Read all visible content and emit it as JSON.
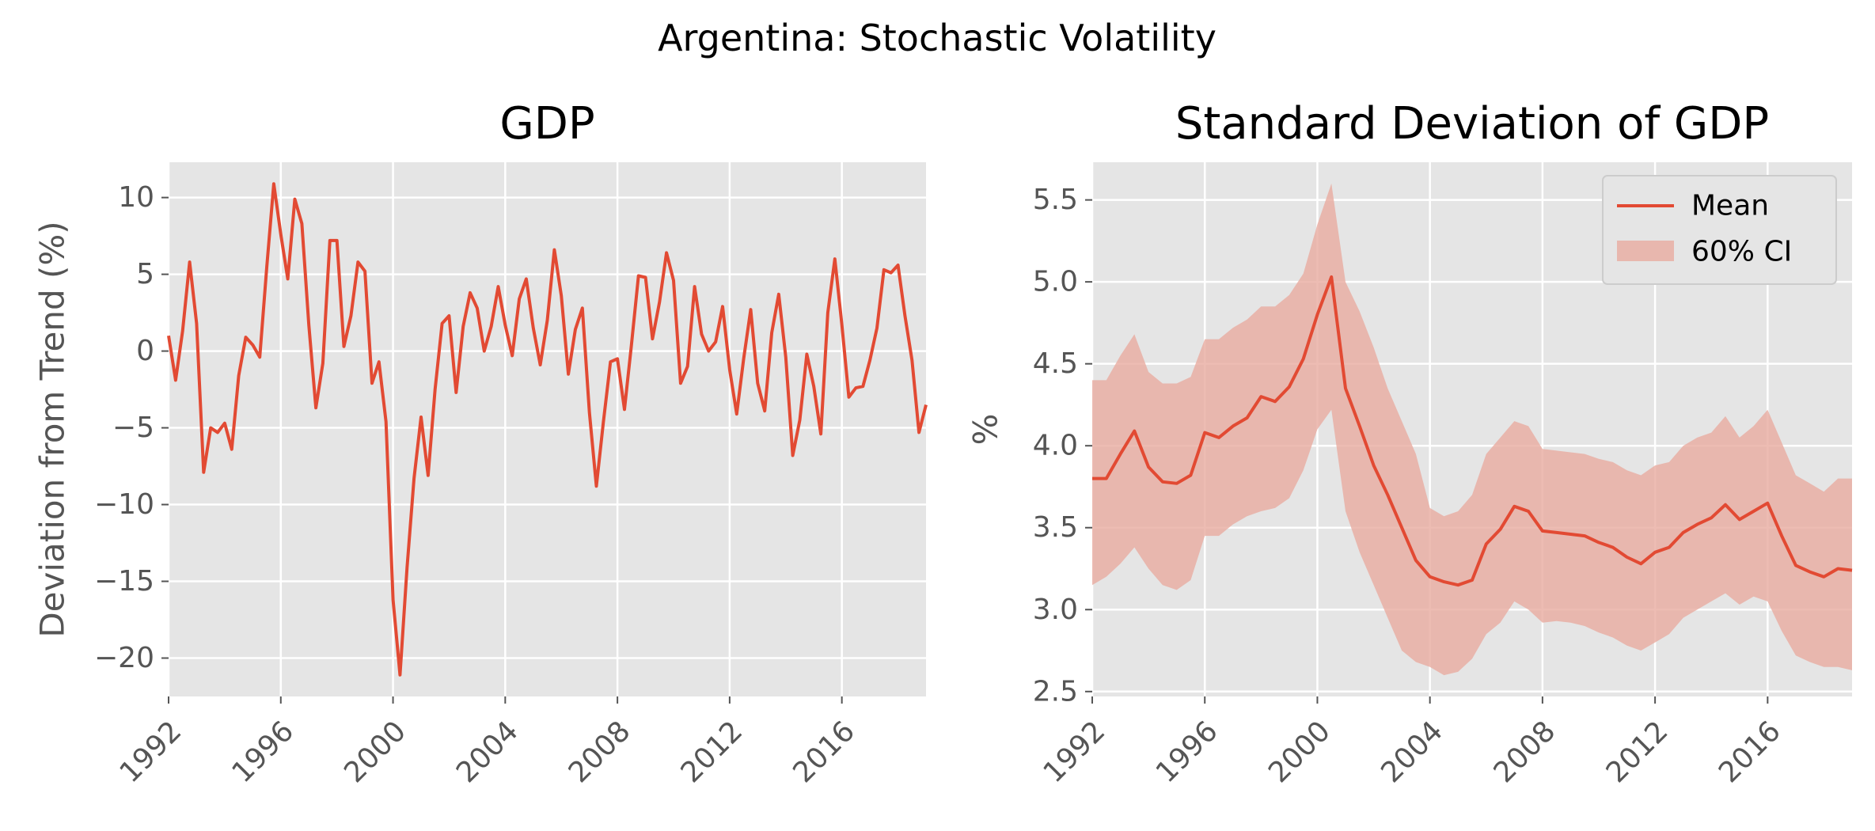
{
  "suptitle": "Argentina: Stochastic Volatility",
  "colors": {
    "line": "#e24a33",
    "band": "#e8aba0",
    "panel": "#e5e5e5",
    "grid": "#ffffff"
  },
  "chart_data": [
    {
      "type": "line",
      "title": "GDP",
      "xlabel": "",
      "ylabel": "Deviation from Trend (%)",
      "xlim": [
        1992.0,
        2019.0
      ],
      "ylim": [
        -22.5,
        12.3
      ],
      "xticks": [
        1992,
        1996,
        2000,
        2004,
        2008,
        2012,
        2016
      ],
      "xtick_labels": [
        "1992",
        "1996",
        "2000",
        "2004",
        "2008",
        "2012",
        "2016"
      ],
      "yticks": [
        10,
        5,
        0,
        -5,
        -10,
        -15,
        -20
      ],
      "ytick_labels": [
        "10",
        "5",
        "0",
        "−5",
        "−10",
        "−15",
        "−20"
      ],
      "grid": true,
      "series": [
        {
          "x": [
            1992.0,
            1992.25,
            1992.5,
            1992.75,
            1993.0,
            1993.25,
            1993.5,
            1993.75,
            1994.0,
            1994.25,
            1994.5,
            1994.75,
            1995.0,
            1995.25,
            1995.5,
            1995.75,
            1996.0,
            1996.25,
            1996.5,
            1996.75,
            1997.0,
            1997.25,
            1997.5,
            1997.75,
            1998.0,
            1998.25,
            1998.5,
            1998.75,
            1999.0,
            1999.25,
            1999.5,
            1999.75,
            2000.0,
            2000.25,
            2000.5,
            2000.75,
            2001.0,
            2001.25,
            2001.5,
            2001.75,
            2002.0,
            2002.25,
            2002.5,
            2002.75,
            2003.0,
            2003.25,
            2003.5,
            2003.75,
            2004.0,
            2004.25,
            2004.5,
            2004.75,
            2005.0,
            2005.25,
            2005.5,
            2005.75,
            2006.0,
            2006.25,
            2006.5,
            2006.75,
            2007.0,
            2007.25,
            2007.5,
            2007.75,
            2008.0,
            2008.25,
            2008.5,
            2008.75,
            2009.0,
            2009.25,
            2009.5,
            2009.75,
            2010.0,
            2010.25,
            2010.5,
            2010.75,
            2011.0,
            2011.25,
            2011.5,
            2011.75,
            2012.0,
            2012.25,
            2012.5,
            2012.75,
            2013.0,
            2013.25,
            2013.5,
            2013.75,
            2014.0,
            2014.25,
            2014.5,
            2014.75,
            2015.0,
            2015.25,
            2015.5,
            2015.75,
            2016.0,
            2016.25,
            2016.5,
            2016.75,
            2017.0,
            2017.25,
            2017.5,
            2017.75,
            2018.0,
            2018.25,
            2018.5,
            2018.75,
            2019.0
          ],
          "values": [
            1.0,
            -1.9,
            1.3,
            5.8,
            1.8,
            -7.9,
            -5.0,
            -5.3,
            -4.7,
            -6.4,
            -1.6,
            0.9,
            0.4,
            -0.4,
            5.5,
            10.9,
            7.6,
            4.7,
            9.9,
            8.3,
            1.7,
            -3.7,
            -0.8,
            7.2,
            7.2,
            0.3,
            2.3,
            5.8,
            5.2,
            -2.1,
            -0.7,
            -4.6,
            -16.2,
            -21.1,
            -14.1,
            -8.3,
            -4.3,
            -8.1,
            -2.5,
            1.8,
            2.3,
            -2.7,
            1.6,
            3.8,
            2.8,
            0.0,
            1.6,
            4.2,
            1.7,
            -0.3,
            3.4,
            4.7,
            1.5,
            -0.9,
            2.0,
            6.6,
            3.6,
            -1.5,
            1.4,
            2.8,
            -4.0,
            -8.8,
            -4.6,
            -0.7,
            -0.5,
            -3.8,
            0.4,
            4.9,
            4.8,
            0.8,
            3.2,
            6.4,
            4.6,
            -2.1,
            -1.0,
            4.2,
            1.1,
            0.0,
            0.6,
            2.9,
            -1.2,
            -4.1,
            -0.5,
            2.7,
            -2.1,
            -3.9,
            1.2,
            3.7,
            -0.4,
            -6.8,
            -4.5,
            -0.2,
            -2.3,
            -5.4,
            2.5,
            6.0,
            1.7,
            -3.0,
            -2.4,
            -2.3,
            -0.6,
            1.5,
            5.3,
            5.1,
            5.6,
            2.3,
            -0.6,
            -5.3,
            -3.5
          ]
        }
      ]
    },
    {
      "type": "line",
      "title": "Standard Deviation of GDP",
      "xlabel": "",
      "ylabel": "%",
      "xlim": [
        1992.0,
        2019.0
      ],
      "ylim": [
        2.47,
        5.73
      ],
      "xticks": [
        1992,
        1996,
        2000,
        2004,
        2008,
        2012,
        2016
      ],
      "xtick_labels": [
        "1992",
        "1996",
        "2000",
        "2004",
        "2008",
        "2012",
        "2016"
      ],
      "yticks": [
        5.5,
        5.0,
        4.5,
        4.0,
        3.5,
        3.0,
        2.5
      ],
      "ytick_labels": [
        "5.5",
        "5.0",
        "4.5",
        "4.0",
        "3.5",
        "3.0",
        "2.5"
      ],
      "grid": true,
      "legend_position": "top-right",
      "series": [
        {
          "name": "Mean",
          "x": [
            1992.0,
            1992.5,
            1993.0,
            1993.5,
            1994.0,
            1994.5,
            1995.0,
            1995.5,
            1996.0,
            1996.5,
            1997.0,
            1997.5,
            1998.0,
            1998.5,
            1999.0,
            1999.5,
            2000.0,
            2000.5,
            2001.0,
            2001.5,
            2002.0,
            2002.5,
            2003.0,
            2003.5,
            2004.0,
            2004.5,
            2005.0,
            2005.5,
            2006.0,
            2006.5,
            2007.0,
            2007.5,
            2008.0,
            2008.5,
            2009.0,
            2009.5,
            2010.0,
            2010.5,
            2011.0,
            2011.5,
            2012.0,
            2012.5,
            2013.0,
            2013.5,
            2014.0,
            2014.5,
            2015.0,
            2015.5,
            2016.0,
            2016.5,
            2017.0,
            2017.5,
            2018.0,
            2018.5,
            2019.0
          ],
          "values": [
            3.8,
            3.8,
            3.95,
            4.09,
            3.87,
            3.78,
            3.77,
            3.82,
            4.08,
            4.05,
            4.12,
            4.17,
            4.3,
            4.27,
            4.36,
            4.53,
            4.8,
            5.03,
            4.35,
            4.12,
            3.88,
            3.7,
            3.5,
            3.3,
            3.2,
            3.17,
            3.15,
            3.18,
            3.4,
            3.49,
            3.63,
            3.6,
            3.48,
            3.47,
            3.46,
            3.45,
            3.41,
            3.38,
            3.32,
            3.28,
            3.35,
            3.38,
            3.47,
            3.52,
            3.56,
            3.64,
            3.55,
            3.6,
            3.65,
            3.45,
            3.27,
            3.23,
            3.2,
            3.25,
            3.24
          ]
        },
        {
          "name": "60% CI",
          "x": [
            1992.0,
            1992.5,
            1993.0,
            1993.5,
            1994.0,
            1994.5,
            1995.0,
            1995.5,
            1996.0,
            1996.5,
            1997.0,
            1997.5,
            1998.0,
            1998.5,
            1999.0,
            1999.5,
            2000.0,
            2000.5,
            2001.0,
            2001.5,
            2002.0,
            2002.5,
            2003.0,
            2003.5,
            2004.0,
            2004.5,
            2005.0,
            2005.5,
            2006.0,
            2006.5,
            2007.0,
            2007.5,
            2008.0,
            2008.5,
            2009.0,
            2009.5,
            2010.0,
            2010.5,
            2011.0,
            2011.5,
            2012.0,
            2012.5,
            2013.0,
            2013.5,
            2014.0,
            2014.5,
            2015.0,
            2015.5,
            2016.0,
            2016.5,
            2017.0,
            2017.5,
            2018.0,
            2018.5,
            2019.0
          ],
          "lower": [
            3.15,
            3.2,
            3.28,
            3.38,
            3.25,
            3.15,
            3.12,
            3.18,
            3.45,
            3.45,
            3.52,
            3.57,
            3.6,
            3.62,
            3.68,
            3.85,
            4.1,
            4.22,
            3.6,
            3.35,
            3.15,
            2.95,
            2.75,
            2.68,
            2.65,
            2.6,
            2.62,
            2.7,
            2.85,
            2.92,
            3.05,
            3.0,
            2.92,
            2.93,
            2.92,
            2.9,
            2.86,
            2.83,
            2.78,
            2.75,
            2.8,
            2.85,
            2.95,
            3.0,
            3.05,
            3.1,
            3.03,
            3.08,
            3.05,
            2.87,
            2.72,
            2.68,
            2.65,
            2.65,
            2.63
          ],
          "upper": [
            4.4,
            4.4,
            4.55,
            4.68,
            4.45,
            4.38,
            4.38,
            4.42,
            4.65,
            4.65,
            4.72,
            4.77,
            4.85,
            4.85,
            4.92,
            5.05,
            5.35,
            5.6,
            5.0,
            4.82,
            4.6,
            4.35,
            4.15,
            3.95,
            3.62,
            3.57,
            3.6,
            3.7,
            3.95,
            4.05,
            4.15,
            4.12,
            3.98,
            3.97,
            3.96,
            3.95,
            3.92,
            3.9,
            3.85,
            3.82,
            3.88,
            3.9,
            4.0,
            4.05,
            4.08,
            4.18,
            4.05,
            4.12,
            4.22,
            4.02,
            3.82,
            3.77,
            3.72,
            3.8,
            3.8
          ]
        }
      ]
    }
  ]
}
